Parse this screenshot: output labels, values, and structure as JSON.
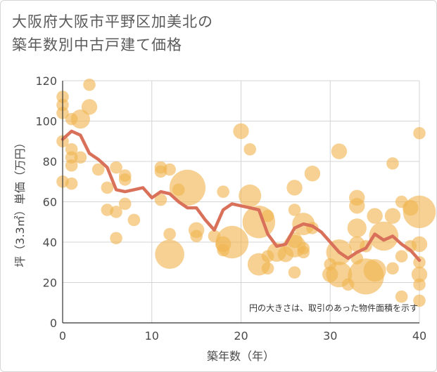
{
  "chart_data": {
    "type": "scatter",
    "title": "大阪府大阪市平野区加美北の\n築年数別中古戸建て価格",
    "title_lines": [
      "大阪府大阪市平野区加美北の",
      "築年数別中古戸建て価格"
    ],
    "xlabel": "築年数（年）",
    "ylabel": "坪（3.3㎡）単価（万円）",
    "xlim": [
      0,
      40
    ],
    "ylim": [
      0,
      120
    ],
    "xticks": [
      0,
      10,
      20,
      30,
      40
    ],
    "yticks": [
      0,
      20,
      40,
      60,
      80,
      100,
      120
    ],
    "grid": true,
    "annotation": "円の大きさは、取引のあった物件面積を示す",
    "colors": {
      "bubble": "#f0b550",
      "line": "#d9705a",
      "grid": "#d4d4d4"
    },
    "bubbles": [
      {
        "x": 0,
        "y": 112,
        "s": 2
      },
      {
        "x": 0,
        "y": 108,
        "s": 2
      },
      {
        "x": 0,
        "y": 104,
        "s": 2
      },
      {
        "x": 0,
        "y": 90,
        "s": 2
      },
      {
        "x": 0,
        "y": 70,
        "s": 2
      },
      {
        "x": 1,
        "y": 101,
        "s": 2
      },
      {
        "x": 1,
        "y": 86,
        "s": 2
      },
      {
        "x": 1,
        "y": 82,
        "s": 2
      },
      {
        "x": 1,
        "y": 78,
        "s": 2
      },
      {
        "x": 1,
        "y": 69,
        "s": 2
      },
      {
        "x": 2,
        "y": 101,
        "s": 4
      },
      {
        "x": 2,
        "y": 82,
        "s": 2
      },
      {
        "x": 3,
        "y": 118,
        "s": 2
      },
      {
        "x": 3,
        "y": 107,
        "s": 3
      },
      {
        "x": 4,
        "y": 76,
        "s": 2
      },
      {
        "x": 5,
        "y": 67,
        "s": 2
      },
      {
        "x": 5,
        "y": 56,
        "s": 2
      },
      {
        "x": 6,
        "y": 77,
        "s": 2
      },
      {
        "x": 6,
        "y": 55,
        "s": 2
      },
      {
        "x": 6,
        "y": 42,
        "s": 2
      },
      {
        "x": 7,
        "y": 73,
        "s": 2
      },
      {
        "x": 7,
        "y": 71,
        "s": 2
      },
      {
        "x": 7,
        "y": 59,
        "s": 2
      },
      {
        "x": 8,
        "y": 51,
        "s": 2
      },
      {
        "x": 11,
        "y": 77,
        "s": 2
      },
      {
        "x": 11,
        "y": 75,
        "s": 2
      },
      {
        "x": 11,
        "y": 61,
        "s": 2
      },
      {
        "x": 12,
        "y": 76,
        "s": 2
      },
      {
        "x": 12,
        "y": 44,
        "s": 2
      },
      {
        "x": 12,
        "y": 34,
        "s": 7
      },
      {
        "x": 13,
        "y": 66,
        "s": 2
      },
      {
        "x": 14,
        "y": 67,
        "s": 9
      },
      {
        "x": 15,
        "y": 46,
        "s": 3
      },
      {
        "x": 15,
        "y": 43,
        "s": 2
      },
      {
        "x": 17,
        "y": 43,
        "s": 2
      },
      {
        "x": 18,
        "y": 65,
        "s": 2
      },
      {
        "x": 18,
        "y": 39,
        "s": 3
      },
      {
        "x": 18,
        "y": 36,
        "s": 2
      },
      {
        "x": 19,
        "y": 40,
        "s": 8
      },
      {
        "x": 20,
        "y": 95,
        "s": 3
      },
      {
        "x": 21,
        "y": 86,
        "s": 2
      },
      {
        "x": 21,
        "y": 63,
        "s": 5
      },
      {
        "x": 22,
        "y": 50,
        "s": 8
      },
      {
        "x": 22,
        "y": 29,
        "s": 5
      },
      {
        "x": 23,
        "y": 53,
        "s": 2
      },
      {
        "x": 23,
        "y": 33,
        "s": 2
      },
      {
        "x": 23,
        "y": 27,
        "s": 2
      },
      {
        "x": 24,
        "y": 35,
        "s": 4
      },
      {
        "x": 25,
        "y": 34,
        "s": 3
      },
      {
        "x": 26,
        "y": 67,
        "s": 3
      },
      {
        "x": 26,
        "y": 56,
        "s": 2
      },
      {
        "x": 26,
        "y": 41,
        "s": 3
      },
      {
        "x": 26,
        "y": 38,
        "s": 5
      },
      {
        "x": 26,
        "y": 25,
        "s": 2
      },
      {
        "x": 27,
        "y": 49,
        "s": 5
      },
      {
        "x": 27,
        "y": 37,
        "s": 2
      },
      {
        "x": 27,
        "y": 35,
        "s": 2
      },
      {
        "x": 28,
        "y": 74,
        "s": 3
      },
      {
        "x": 28,
        "y": 47,
        "s": 2
      },
      {
        "x": 30,
        "y": 29,
        "s": 2
      },
      {
        "x": 30,
        "y": 24,
        "s": 3
      },
      {
        "x": 31,
        "y": 85,
        "s": 3
      },
      {
        "x": 31,
        "y": 35,
        "s": 6
      },
      {
        "x": 31,
        "y": 24,
        "s": 6
      },
      {
        "x": 32,
        "y": 19,
        "s": 2
      },
      {
        "x": 33,
        "y": 62,
        "s": 3
      },
      {
        "x": 33,
        "y": 58,
        "s": 3
      },
      {
        "x": 33,
        "y": 47,
        "s": 4
      },
      {
        "x": 33,
        "y": 39,
        "s": 3
      },
      {
        "x": 33,
        "y": 32,
        "s": 2
      },
      {
        "x": 34,
        "y": 38,
        "s": 2
      },
      {
        "x": 34,
        "y": 23,
        "s": 9
      },
      {
        "x": 35,
        "y": 53,
        "s": 3
      },
      {
        "x": 35,
        "y": 26,
        "s": 5
      },
      {
        "x": 36,
        "y": 43,
        "s": 7
      },
      {
        "x": 37,
        "y": 79,
        "s": 2
      },
      {
        "x": 37,
        "y": 53,
        "s": 3
      },
      {
        "x": 37,
        "y": 27,
        "s": 2
      },
      {
        "x": 38,
        "y": 60,
        "s": 2
      },
      {
        "x": 38,
        "y": 33,
        "s": 2
      },
      {
        "x": 38,
        "y": 13,
        "s": 2
      },
      {
        "x": 39,
        "y": 57,
        "s": 3
      },
      {
        "x": 39,
        "y": 38,
        "s": 2
      },
      {
        "x": 40,
        "y": 94,
        "s": 2
      },
      {
        "x": 40,
        "y": 55,
        "s": 8
      },
      {
        "x": 40,
        "y": 39,
        "s": 3
      },
      {
        "x": 40,
        "y": 30,
        "s": 2
      },
      {
        "x": 40,
        "y": 24,
        "s": 3
      },
      {
        "x": 40,
        "y": 19,
        "s": 2
      },
      {
        "x": 40,
        "y": 11,
        "s": 2
      }
    ],
    "series": [
      {
        "type": "line",
        "x": [
          0,
          1,
          2,
          3,
          4,
          5,
          6,
          7,
          8,
          9,
          10,
          11,
          12,
          13,
          14,
          15,
          16,
          17,
          18,
          19,
          20,
          21,
          22,
          23,
          24,
          25,
          26,
          27,
          28,
          29,
          30,
          31,
          32,
          33,
          34,
          35,
          36,
          37,
          38,
          39,
          40
        ],
        "values": [
          91,
          95,
          93,
          84,
          81,
          77,
          66,
          65,
          66,
          67,
          62,
          65,
          64,
          60,
          57,
          57,
          51,
          46,
          56,
          59,
          58,
          57,
          56,
          44,
          38,
          39,
          47,
          49,
          48,
          45,
          40,
          35,
          32,
          35,
          37,
          44,
          41,
          43,
          39,
          36,
          31
        ]
      }
    ]
  }
}
